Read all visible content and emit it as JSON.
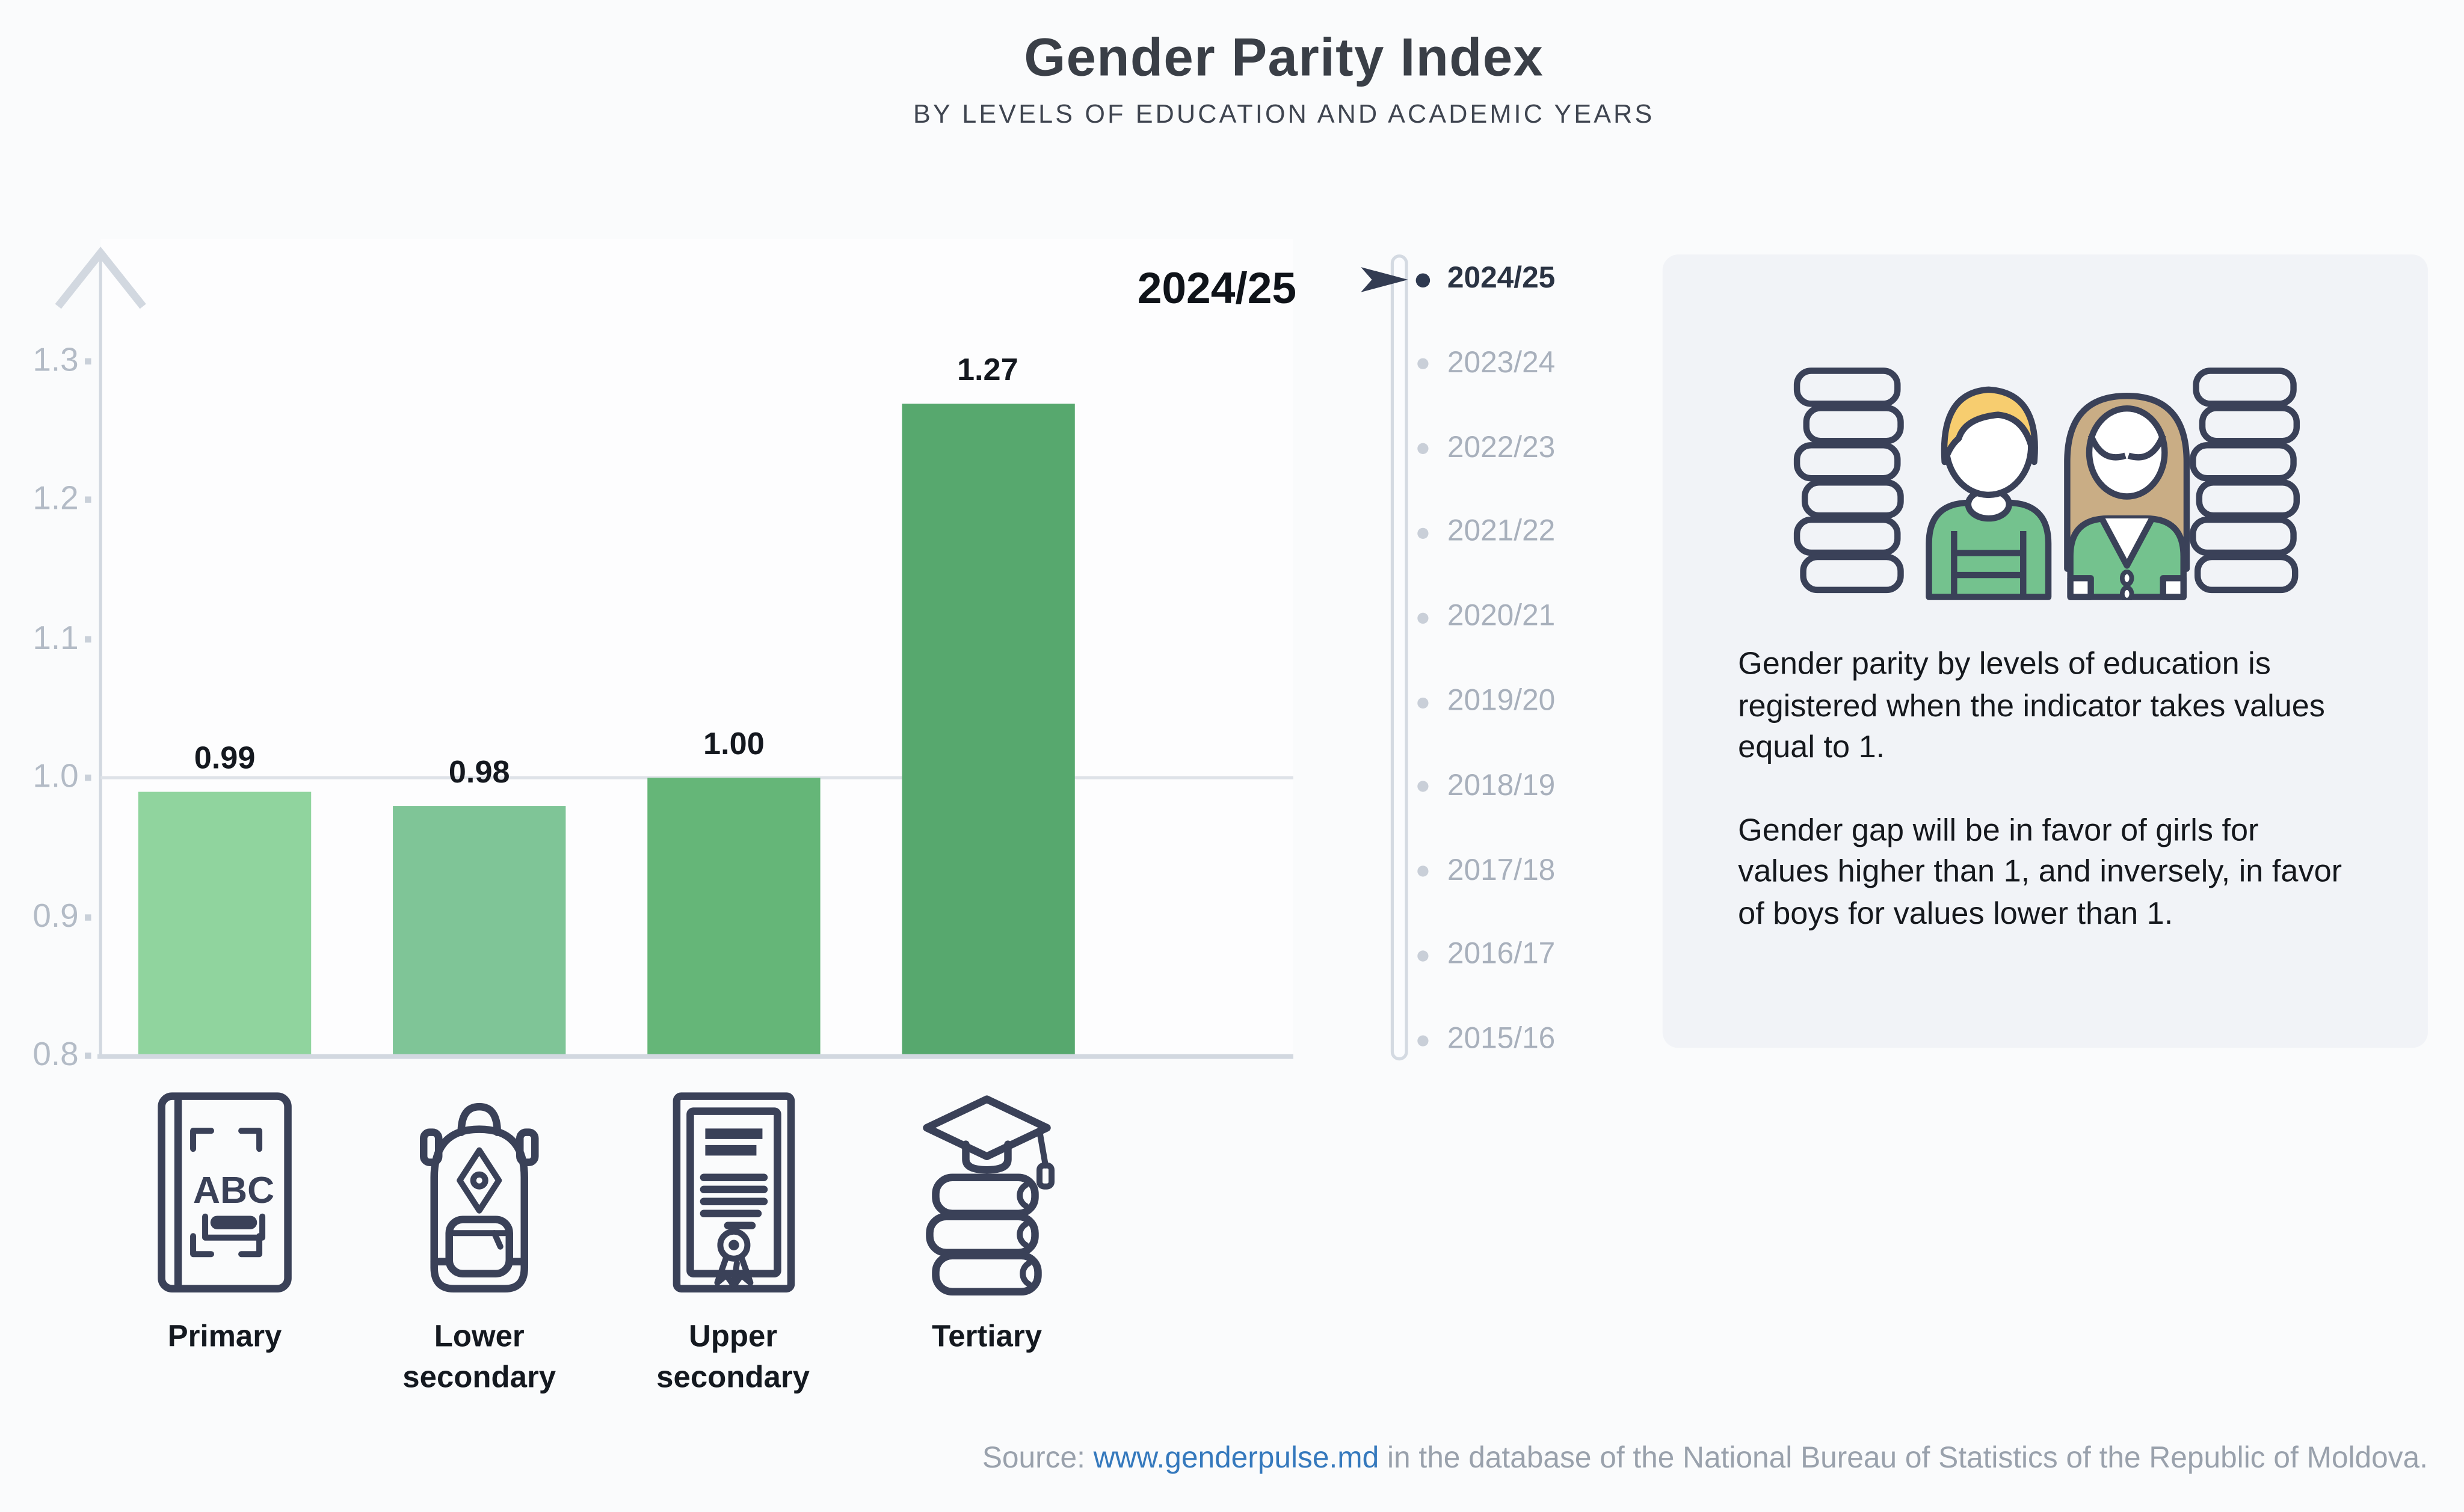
{
  "header": {
    "title": "Gender Parity Index",
    "subtitle": "BY LEVELS OF EDUCATION AND ACADEMIC YEARS"
  },
  "chart_data": {
    "type": "bar",
    "title": "Gender Parity Index",
    "subtitle": "BY LEVELS OF EDUCATION AND ACADEMIC YEARS",
    "selected_year": "2024/25",
    "categories": [
      "Primary",
      "Lower secondary",
      "Upper secondary",
      "Tertiary"
    ],
    "values": [
      0.99,
      0.98,
      1.0,
      1.27
    ],
    "value_labels": [
      "0.99",
      "0.98",
      "1.00",
      "1.27"
    ],
    "y_ticks": [
      "1.3",
      "1.2",
      "1.1",
      "1.0",
      "0.9",
      "0.8"
    ],
    "ylim": [
      0.8,
      1.35
    ],
    "gridline_at": 1.0,
    "bar_colors": [
      "#90d49e",
      "#7fc597",
      "#65b678",
      "#57a86e"
    ],
    "xlabel": "",
    "ylabel": "Gender Parity Index",
    "legend_position": "none"
  },
  "timeline": {
    "years": [
      "2024/25",
      "2023/24",
      "2022/23",
      "2021/22",
      "2020/21",
      "2019/20",
      "2018/19",
      "2017/18",
      "2016/17",
      "2015/16"
    ],
    "selected_year": "2024/25",
    "selected_index": 0
  },
  "icons": {
    "primary": "abc-book-icon",
    "lower_secondary": "backpack-icon",
    "upper_secondary": "diploma-icon",
    "tertiary": "graduation-books-icon"
  },
  "info_box": {
    "paragraph_1": "Gender parity by levels of education is registered when the indicator takes values equal to 1.",
    "paragraph_2": "Gender gap will be in favor of girls for values higher than 1, and inversely, in favor of boys for values lower than 1."
  },
  "source": {
    "prefix": "Source: ",
    "link_text": "www.genderpulse.md",
    "suffix": " in the database of the National Bureau of Statistics of the Republic of Moldova."
  },
  "colors": {
    "page_bg": "#fafbfc",
    "plot_bg": "#fdfdfe",
    "axis": "#d2d8e0",
    "grid": "#dee2e8",
    "tick_text": "#b3bbc6",
    "value_text": "#14181f",
    "year_active": "#2a3343",
    "year_inactive": "#a8b0bc",
    "dot_active": "#2e3950",
    "dot_inactive": "#c9cfd8",
    "cursor_navy": "#333c52",
    "info_box_bg": "#f1f3f7",
    "outline_navy": "#3a4158",
    "hair_yellow": "#f7cd6f",
    "hair_tan": "#c9ad85",
    "clothes_green": "#74c28e",
    "link_blue": "#3579bd",
    "source_gray": "#99a1ac"
  }
}
